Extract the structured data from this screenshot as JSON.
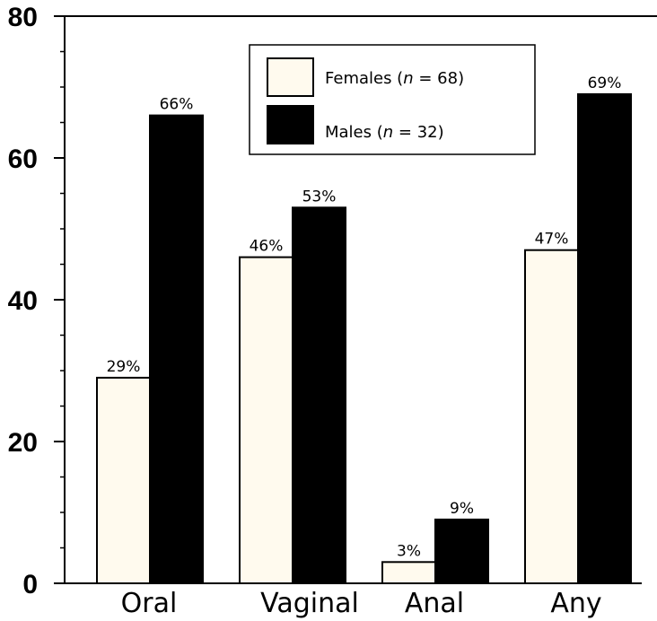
{
  "chart_data": {
    "type": "bar",
    "categories": [
      "Oral",
      "Vaginal",
      "Anal",
      "Any"
    ],
    "ylim": [
      0,
      80
    ],
    "yticks": [
      "0",
      "20",
      "40",
      "60",
      "80"
    ],
    "series": [
      {
        "name": "Females (n = 68)",
        "name_prefix": "Females (",
        "name_n": "n",
        "name_suffix": " = 68)",
        "color": "#fffaee",
        "values": [
          29,
          46,
          3,
          47
        ],
        "labels": [
          "29%",
          "46%",
          "3%",
          "47%"
        ]
      },
      {
        "name": "Males (n = 32)",
        "name_prefix": "Males (",
        "name_n": "n",
        "name_suffix": " = 32)",
        "color": "#000000",
        "values": [
          66,
          53,
          9,
          69
        ],
        "labels": [
          "66%",
          "53%",
          "9%",
          "69%"
        ]
      }
    ],
    "legend_position": "top-center",
    "grid": false
  }
}
